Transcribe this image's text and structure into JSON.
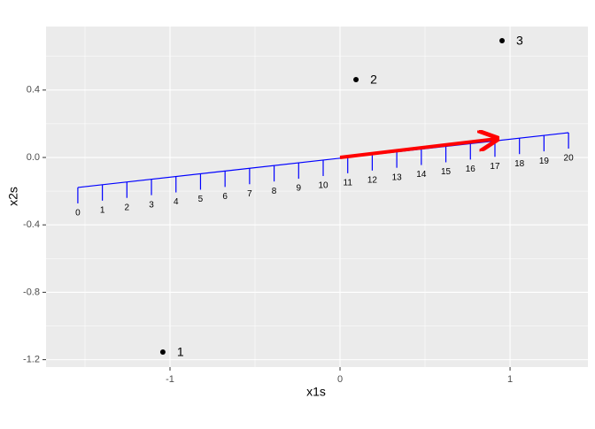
{
  "chart_data": {
    "type": "scatter",
    "x_label": "x1s",
    "y_label": "x2s",
    "x": [
      -1.042,
      0.094,
      0.953
    ],
    "values": [
      -1.155,
      0.462,
      0.693
    ],
    "point_labels": [
      "1",
      "2",
      "3"
    ],
    "color": "#000000",
    "xlim": [
      -1.729,
      1.458
    ],
    "ylim": [
      -1.244,
      0.777
    ],
    "xticks": [
      -1,
      0,
      1
    ],
    "yticks": [
      {
        "value": -1.2,
        "label": "-1.2"
      },
      {
        "value": -0.8,
        "label": "-0.8"
      },
      {
        "value": -0.4,
        "label": "-0.4"
      },
      {
        "value": 0,
        "label": "0.0"
      },
      {
        "value": 0.4,
        "label": "0.4"
      }
    ],
    "grid": true,
    "projection": {
      "color": "#0000ff",
      "labels": [
        0,
        1,
        2,
        3,
        4,
        5,
        6,
        7,
        8,
        9,
        10,
        11,
        12,
        13,
        14,
        15,
        16,
        17,
        18,
        19,
        20
      ],
      "from": [
        -1.542,
        -0.178
      ],
      "to": [
        1.344,
        0.147
      ]
    },
    "arrow": {
      "color": "#ff0000",
      "from": [
        0,
        0
      ],
      "to": [
        0.917,
        0.11
      ]
    }
  }
}
